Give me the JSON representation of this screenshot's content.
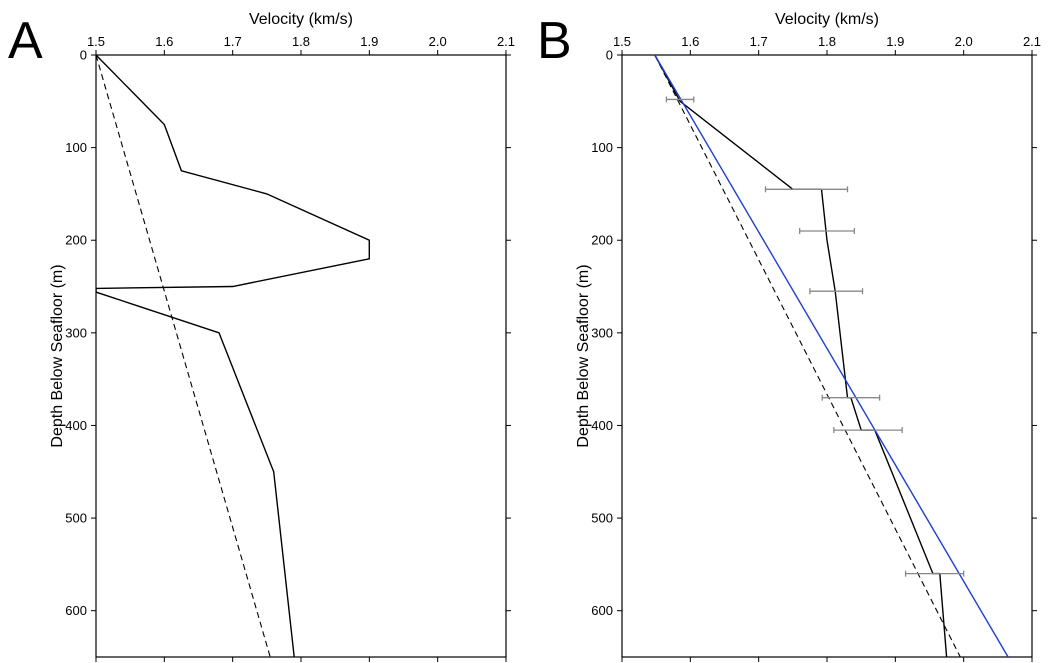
{
  "chart_data": [
    {
      "type": "line",
      "panel_label": "A",
      "xlabel": "Velocity (km/s)",
      "ylabel": "Depth Below Seafloor (m)",
      "xlim": [
        1.5,
        2.1
      ],
      "ylim": [
        0,
        650
      ],
      "y_inverted": true,
      "x_axis_position": "top",
      "xticks": [
        1.5,
        1.6,
        1.7,
        1.8,
        1.9,
        2.0,
        2.1
      ],
      "xtick_labels": [
        "1.5",
        "1.6",
        "1.7",
        "1.8",
        "1.9",
        "2.0",
        "2.1"
      ],
      "yticks": [
        0,
        100,
        200,
        300,
        400,
        500,
        600
      ],
      "ytick_labels": [
        "0",
        "100",
        "200",
        "300",
        "400",
        "500",
        "600"
      ],
      "grid": false,
      "series": [
        {
          "style": "solid",
          "color": "#000000",
          "points": [
            [
              1.5,
              0
            ],
            [
              1.6,
              75
            ],
            [
              1.625,
              125
            ],
            [
              1.75,
              150
            ],
            [
              1.9,
              200
            ],
            [
              1.9,
              220
            ],
            [
              1.7,
              250
            ],
            [
              1.5,
              252
            ],
            [
              1.5,
              256
            ],
            [
              1.68,
              300
            ],
            [
              1.76,
              450
            ],
            [
              1.79,
              650
            ]
          ]
        },
        {
          "style": "dashed",
          "color": "#000000",
          "points": [
            [
              1.5,
              0
            ],
            [
              1.755,
              650
            ]
          ]
        }
      ]
    },
    {
      "type": "line",
      "panel_label": "B",
      "xlabel": "Velocity (km/s)",
      "ylabel": "Depth Below Seafloor (m)",
      "xlim": [
        1.5,
        2.1
      ],
      "ylim": [
        0,
        650
      ],
      "y_inverted": true,
      "x_axis_position": "top",
      "xticks": [
        1.5,
        1.6,
        1.7,
        1.8,
        1.9,
        2.0,
        2.1
      ],
      "xtick_labels": [
        "1.5",
        "1.6",
        "1.7",
        "1.8",
        "1.9",
        "2.0",
        "2.1"
      ],
      "yticks": [
        0,
        100,
        200,
        300,
        400,
        500,
        600
      ],
      "ytick_labels": [
        "0",
        "100",
        "200",
        "300",
        "400",
        "500",
        "600"
      ],
      "grid": false,
      "series": [
        {
          "style": "solid",
          "color": "#000000",
          "points": [
            [
              1.548,
              0
            ],
            [
              1.585,
              50
            ],
            [
              1.75,
              145
            ],
            [
              1.792,
              145
            ],
            [
              1.8,
              200
            ],
            [
              1.812,
              255
            ],
            [
              1.83,
              370
            ],
            [
              1.835,
              370
            ],
            [
              1.85,
              405
            ],
            [
              1.87,
              405
            ],
            [
              1.955,
              560
            ],
            [
              1.965,
              560
            ],
            [
              1.975,
              650
            ]
          ]
        },
        {
          "style": "dashed",
          "color": "#000000",
          "points": [
            [
              1.548,
              0
            ],
            [
              1.995,
              650
            ]
          ]
        },
        {
          "style": "solid",
          "color": "#1f3fd1",
          "points": [
            [
              1.548,
              0
            ],
            [
              2.065,
              650
            ]
          ]
        }
      ],
      "error_bars": {
        "color": "#888888",
        "items": [
          {
            "depth": 48,
            "xmin": 1.565,
            "xmax": 1.605
          },
          {
            "depth": 145,
            "xmin": 1.71,
            "xmax": 1.83
          },
          {
            "depth": 190,
            "xmin": 1.76,
            "xmax": 1.84
          },
          {
            "depth": 255,
            "xmin": 1.775,
            "xmax": 1.852
          },
          {
            "depth": 370,
            "xmin": 1.793,
            "xmax": 1.877
          },
          {
            "depth": 405,
            "xmin": 1.81,
            "xmax": 1.91
          },
          {
            "depth": 560,
            "xmin": 1.915,
            "xmax": 2.0
          }
        ]
      }
    }
  ]
}
